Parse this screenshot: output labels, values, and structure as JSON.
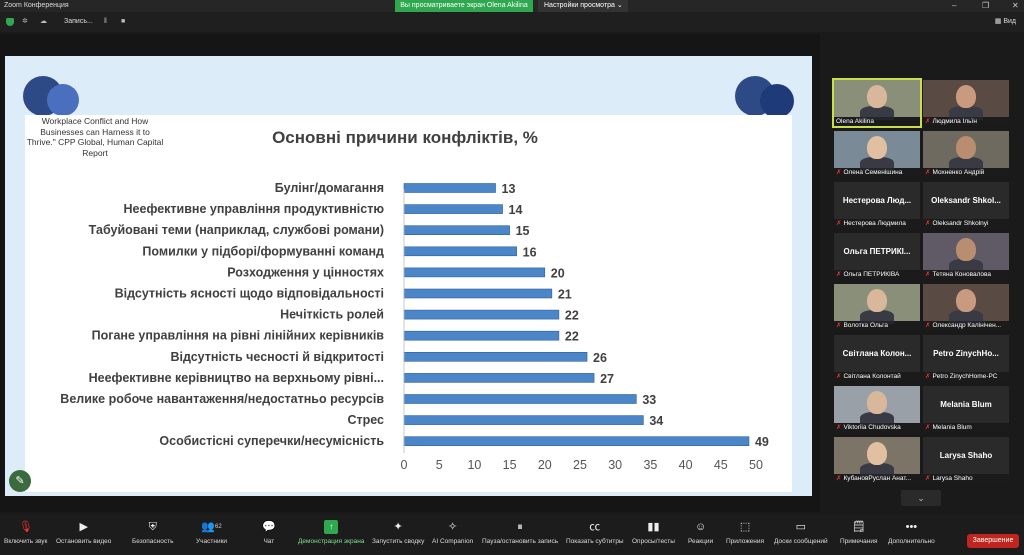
{
  "window": {
    "app_title": "Zoom Конференция",
    "share_banner": "Вы просматриваете экран Olena Akilina",
    "view_settings": "Настройки просмотра"
  },
  "topbar": {
    "record_label": "Запись...",
    "view_label": "Вид"
  },
  "slide": {
    "citation": "Workplace Conflict and How Businesses can Harness it to Thrive.\" CPP Global, Human Capital Report"
  },
  "chart_data": {
    "type": "bar",
    "orientation": "horizontal",
    "title": "Основні причини конфліктів, %",
    "categories": [
      "Булінг/домагання",
      "Неефективне управління продуктивністю",
      "Табуйовані теми (наприклад, службові романи)",
      "Помилки у підборі/формуванні команд",
      "Розходження у цінностях",
      "Відсутність ясності щодо відповідальності",
      "Нечіткість ролей",
      "Погане управління на рівні лінійних керівників",
      "Відсутність чесності й відкритості",
      "Неефективне керівництво на верхньому рівні...",
      "Велике робоче навантаження/недостатньо  ресурсів",
      "Стрес",
      "Особистісні суперечки/несумісність"
    ],
    "values": [
      13,
      14,
      15,
      16,
      20,
      21,
      22,
      22,
      26,
      27,
      33,
      34,
      49
    ],
    "xticks": [
      0,
      5,
      10,
      15,
      20,
      25,
      30,
      35,
      40,
      45,
      50
    ],
    "xlim": [
      0,
      50
    ],
    "grid": false,
    "bar_color": "#4a86c8"
  },
  "participants": [
    {
      "name": "Olena Akilina",
      "video": true,
      "muted": false,
      "active": true
    },
    {
      "name": "Людмила Ільїн",
      "video": true,
      "muted": true
    },
    {
      "name": "Олена Семенішина",
      "video": true,
      "muted": true
    },
    {
      "name": "Мохненко Андрій",
      "video": true,
      "muted": true
    },
    {
      "name": "Нестерова Людмила",
      "display": "Нестерова  Люд...",
      "video": false,
      "muted": true
    },
    {
      "name": "Oleksandr Shkolnyi",
      "display": "Oleksandr  Shkol...",
      "video": false,
      "muted": true
    },
    {
      "name": "Ольга ПЕТРИКІВА",
      "display": "Ольга  ПЕТРИКІ...",
      "video": false,
      "muted": true
    },
    {
      "name": "Тетяна Коновалова",
      "video": true,
      "muted": true
    },
    {
      "name": "Волотка Ольга",
      "video": true,
      "muted": true
    },
    {
      "name": "Олександр Калініченко",
      "display_short": "Олександр Калінічен...",
      "video": true,
      "muted": true
    },
    {
      "name": "Світлана Колонтай",
      "display": "Світлана  Колон...",
      "video": false,
      "muted": true
    },
    {
      "name": "Petro ZinychHome-PC",
      "display": "Petro  ZinychHo...",
      "video": false,
      "muted": true
    },
    {
      "name": "Viktoriia Chudovska",
      "video": true,
      "muted": true
    },
    {
      "name": "Melania Blum",
      "display": "Melania Blum",
      "video": false,
      "muted": true
    },
    {
      "name": "КубановРуслан Анат...",
      "video": true,
      "muted": true
    },
    {
      "name": "Larysa Shaho",
      "display": "Larysa Shaho",
      "video": false,
      "muted": true
    }
  ],
  "toolbar": {
    "audio": "Включить звук",
    "video": "Остановить видео",
    "security": "Безопасность",
    "participants": "Участники",
    "participants_count": "62",
    "chat": "Чат",
    "share": "Демонстрация экрана",
    "summary": "Запустить сводку",
    "ai": "AI Companion",
    "pause_rec": "Пауза/остановить запись",
    "subtitles": "Показать субтитры",
    "polls": "Опросы/тесты",
    "reactions": "Реакции",
    "apps": "Приложения",
    "whiteboards": "Доски сообщений",
    "notes": "Примечания",
    "more": "Дополнительно",
    "end": "Завершение"
  }
}
